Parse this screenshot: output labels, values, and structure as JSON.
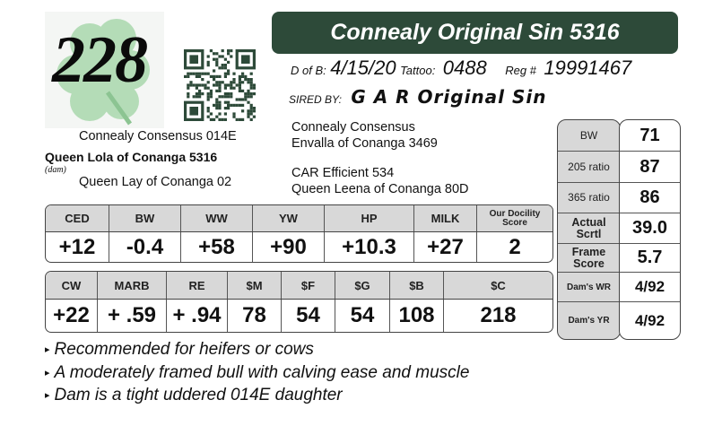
{
  "lot_number": "228",
  "title": "Connealy Original Sin 5316",
  "details": {
    "dob_label": "D of B:",
    "dob": "4/15/20",
    "tattoo_label": "Tattoo:",
    "tattoo": "0488",
    "reg_label": "Reg #",
    "reg": "19991467",
    "sire_label": "SIRED BY:",
    "sire": "G A R Original Sin"
  },
  "pedigree": {
    "sire_sire": "Connealy Consensus",
    "sire_dam": "Envalla of Conanga 3469",
    "sire_dam_sire": "CAR Efficient 534",
    "sire_dam_dam": "Queen Leena of Conanga 80D",
    "dam_sire": "Connealy Consensus 014E",
    "dam": "Queen Lola of Conanga 5316",
    "dam_label": "(dam)",
    "dam_dam": "Queen Lay of Conanga 02"
  },
  "epd_table_1": {
    "headers": [
      "CED",
      "BW",
      "WW",
      "YW",
      "HP",
      "MILK",
      "Our Docility Score"
    ],
    "values": [
      "+12",
      "-0.4",
      "+58",
      "+90",
      "+10.3",
      "+27",
      "2"
    ]
  },
  "epd_table_2": {
    "headers": [
      "CW",
      "MARB",
      "RE",
      "$M",
      "$F",
      "$G",
      "$B",
      "$C"
    ],
    "values": [
      "+22",
      "+ .59",
      "+ .94",
      "78",
      "54",
      "54",
      "108",
      "218"
    ]
  },
  "performance": [
    {
      "label": "BW",
      "value": "71"
    },
    {
      "label": "205 ratio",
      "value": "87"
    },
    {
      "label": "365 ratio",
      "value": "86"
    },
    {
      "label": "Actual Scrtl",
      "value": "39.0"
    },
    {
      "label": "Frame Score",
      "value": "5.7"
    },
    {
      "label": "Dam's WR",
      "value": "4/92"
    },
    {
      "label": "Dam's YR",
      "value": "4/92"
    }
  ],
  "notes": [
    "Recommended for heifers or cows",
    "A moderately framed bull with calving ease and muscle",
    "Dam is a tight uddered 014E daughter"
  ],
  "bullet_glyph": "▸",
  "colors": {
    "title_bar": "#2d4a39",
    "header_gray": "#d8d8d8",
    "shamrock": "#9fd3a4"
  }
}
